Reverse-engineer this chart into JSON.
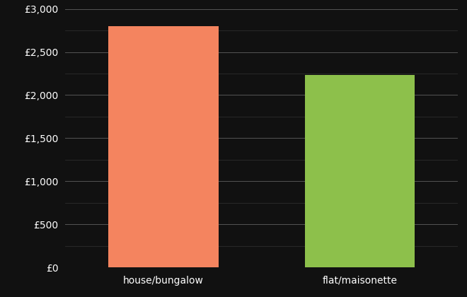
{
  "categories": [
    "house/bungalow",
    "flat/maisonette"
  ],
  "values": [
    2800,
    2230
  ],
  "bar_colors": [
    "#F4845F",
    "#8DC04B"
  ],
  "background_color": "#111111",
  "text_color": "#ffffff",
  "ylim": [
    0,
    3000
  ],
  "yticks": [
    0,
    500,
    1000,
    1500,
    2000,
    2500,
    3000
  ],
  "ytick_labels": [
    "£0",
    "£500",
    "£1,000",
    "£1,500",
    "£2,000",
    "£2,500",
    "£3,000"
  ],
  "minor_yticks": [
    250,
    750,
    1250,
    1750,
    2250,
    2750
  ],
  "bar_width": 0.28,
  "grid_color": "#555555",
  "minor_grid_color": "#333333",
  "tick_fontsize": 10,
  "label_fontsize": 10,
  "x_positions": [
    0.25,
    0.75
  ],
  "xlim": [
    0,
    1
  ]
}
